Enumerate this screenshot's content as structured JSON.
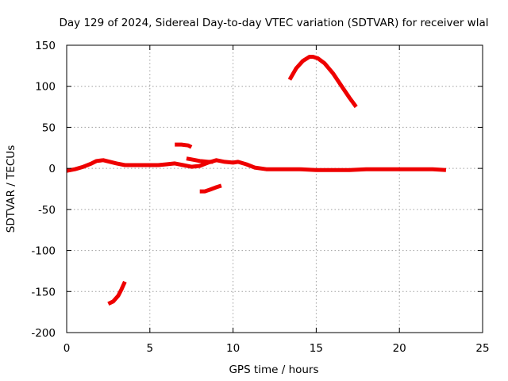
{
  "chart_data": {
    "type": "line",
    "title": "Day 129 of 2024, Sidereal Day-to-day VTEC variation (SDTVAR) for receiver wlal",
    "xlabel": "GPS time / hours",
    "ylabel": "SDTVAR / TECUs",
    "xlim": [
      0,
      25
    ],
    "ylim": [
      -200,
      150
    ],
    "xticks": [
      0,
      5,
      10,
      15,
      20,
      25
    ],
    "yticks": [
      -200,
      -150,
      -100,
      -50,
      0,
      50,
      100,
      150
    ],
    "grid": true,
    "color": "#ee0000",
    "series": [
      {
        "name": "main",
        "x": [
          0,
          0.5,
          1.0,
          1.5,
          1.8,
          2.2,
          3.0,
          3.5,
          4.0,
          4.5,
          5.0,
          5.5,
          6.0,
          6.5,
          7.0,
          7.5,
          8.0,
          8.5,
          9.0,
          9.5,
          10.0,
          10.3,
          10.8,
          11.3,
          12.0,
          13.0,
          14.0,
          15.0,
          16.0,
          17.0,
          18.0,
          19.0,
          20.0,
          21.0,
          22.0,
          22.8
        ],
        "y": [
          -3,
          -1,
          2,
          6,
          9,
          10,
          6,
          4,
          4,
          4,
          4,
          4,
          5,
          6,
          4,
          2,
          3,
          7,
          10,
          8,
          7,
          8,
          5,
          1,
          -1,
          -1,
          -1,
          -2,
          -2,
          -2,
          -1,
          -1,
          -1,
          -1,
          -1,
          -2
        ]
      },
      {
        "name": "upper-arc",
        "x": [
          13.4,
          13.8,
          14.2,
          14.6,
          14.8,
          15.1,
          15.5,
          16.0,
          16.5,
          17.0,
          17.4
        ],
        "y": [
          108,
          122,
          131,
          136,
          136,
          134,
          128,
          116,
          101,
          86,
          75
        ]
      },
      {
        "name": "short-positive",
        "x": [
          6.5,
          6.9,
          7.3,
          7.5
        ],
        "y": [
          29,
          29,
          28,
          26
        ]
      },
      {
        "name": "short-mid",
        "x": [
          7.2,
          7.5,
          8.0,
          8.5,
          8.8
        ],
        "y": [
          12,
          11,
          9,
          8,
          8
        ]
      },
      {
        "name": "short-negative",
        "x": [
          8.0,
          8.3,
          8.6,
          9.0,
          9.3
        ],
        "y": [
          -28,
          -28,
          -26,
          -23,
          -21
        ]
      },
      {
        "name": "low-arc",
        "x": [
          2.5,
          2.8,
          3.1,
          3.3,
          3.5
        ],
        "y": [
          -165,
          -162,
          -155,
          -147,
          -138
        ]
      }
    ]
  }
}
